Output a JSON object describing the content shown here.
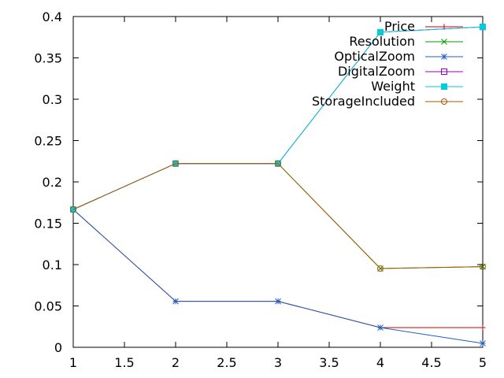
{
  "chart_data": {
    "type": "line",
    "title": "",
    "xlabel": "",
    "ylabel": "",
    "xlim": [
      1,
      5
    ],
    "ylim": [
      0,
      0.4
    ],
    "grid": false,
    "legend_position": "top-right",
    "x": [
      1,
      2,
      3,
      4,
      5
    ],
    "x_ticks": [
      "1",
      "1.5",
      "2",
      "2.5",
      "3",
      "3.5",
      "4",
      "4.5",
      "5"
    ],
    "y_ticks": [
      "0",
      "0.05",
      "0.1",
      "0.15",
      "0.2",
      "0.25",
      "0.3",
      "0.35",
      "0.4"
    ],
    "series": [
      {
        "name": "Price",
        "color": "#cc0000",
        "marker": "plus",
        "values": [
          0.1667,
          0.0556,
          0.0556,
          0.0238,
          0.0238
        ]
      },
      {
        "name": "Resolution",
        "color": "#009900",
        "marker": "x",
        "values": [
          0.1667,
          0.2222,
          0.2222,
          0.0952,
          0.0975
        ]
      },
      {
        "name": "OpticalZoom",
        "color": "#1f5fbf",
        "marker": "star",
        "values": [
          0.1667,
          0.0556,
          0.0556,
          0.0238,
          0.0048
        ]
      },
      {
        "name": "DigitalZoom",
        "color": "#9900bb",
        "marker": "square-open",
        "values": [
          0.1667,
          0.2222,
          0.2222,
          0.381,
          0.3875
        ]
      },
      {
        "name": "Weight",
        "color": "#00ccdd",
        "marker": "square-filled",
        "values": [
          0.1667,
          0.2222,
          0.2222,
          0.381,
          0.3875
        ]
      },
      {
        "name": "StorageIncluded",
        "color": "#aa5500",
        "marker": "circle",
        "values": [
          0.1667,
          0.2222,
          0.2222,
          0.0952,
          0.0975
        ]
      }
    ]
  }
}
